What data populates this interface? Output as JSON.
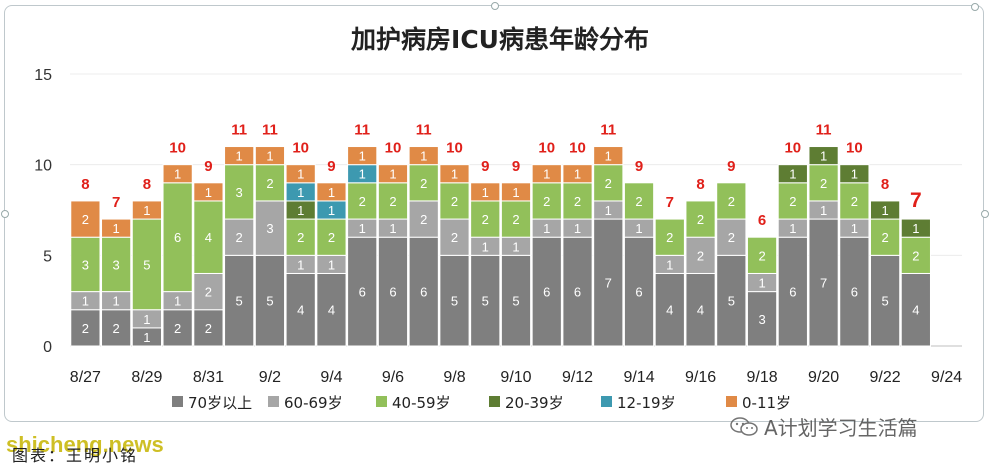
{
  "chart_data": {
    "type": "bar",
    "stacked": true,
    "title": "加护病房ICU病患年龄分布",
    "categories": [
      "8/27",
      "8/28",
      "8/29",
      "8/30",
      "8/31",
      "9/1",
      "9/2",
      "9/3",
      "9/4",
      "9/5",
      "9/6",
      "9/7",
      "9/8",
      "9/9",
      "9/10",
      "9/11",
      "9/12",
      "9/13",
      "9/14",
      "9/15",
      "9/16",
      "9/17",
      "9/18",
      "9/19",
      "9/20",
      "9/21",
      "9/22",
      "9/23",
      "9/24"
    ],
    "x_tick_labels": [
      "8/27",
      "8/29",
      "8/31",
      "9/2",
      "9/4",
      "9/6",
      "9/8",
      "9/10",
      "9/12",
      "9/14",
      "9/16",
      "9/18",
      "9/20",
      "9/22",
      "9/24"
    ],
    "ylim": [
      0,
      15
    ],
    "y_ticks": [
      0,
      5,
      10,
      15
    ],
    "grid": true,
    "legend_position": "bottom",
    "series": [
      {
        "name": "70岁以上",
        "color": "#7f7f7f",
        "values": [
          2,
          2,
          1,
          2,
          2,
          5,
          5,
          4,
          4,
          6,
          6,
          6,
          5,
          5,
          5,
          6,
          6,
          7,
          6,
          4,
          4,
          5,
          3,
          6,
          7,
          6,
          5,
          4,
          0
        ]
      },
      {
        "name": "60-69岁",
        "color": "#a6a6a6",
        "values": [
          1,
          1,
          1,
          1,
          2,
          2,
          3,
          1,
          1,
          1,
          1,
          2,
          2,
          1,
          1,
          1,
          1,
          1,
          1,
          1,
          2,
          2,
          1,
          1,
          1,
          1,
          0,
          0,
          0
        ]
      },
      {
        "name": "40-59岁",
        "color": "#92c05a",
        "values": [
          3,
          3,
          5,
          6,
          4,
          3,
          2,
          2,
          2,
          2,
          2,
          2,
          2,
          2,
          2,
          2,
          2,
          2,
          2,
          2,
          2,
          2,
          2,
          2,
          2,
          2,
          2,
          2,
          0
        ]
      },
      {
        "name": "20-39岁",
        "color": "#5e7d33",
        "values": [
          0,
          0,
          0,
          0,
          0,
          0,
          0,
          1,
          0,
          0,
          0,
          0,
          0,
          0,
          0,
          0,
          0,
          0,
          0,
          0,
          0,
          0,
          0,
          1,
          1,
          1,
          1,
          1,
          0
        ]
      },
      {
        "name": "12-19岁",
        "color": "#3d99b0",
        "values": [
          0,
          0,
          0,
          0,
          0,
          0,
          0,
          1,
          1,
          1,
          0,
          0,
          0,
          0,
          0,
          0,
          0,
          0,
          0,
          0,
          0,
          0,
          0,
          0,
          0,
          0,
          0,
          0,
          0
        ]
      },
      {
        "name": "0-11岁",
        "color": "#e08a46",
        "values": [
          2,
          1,
          1,
          1,
          1,
          1,
          1,
          1,
          1,
          1,
          1,
          1,
          1,
          1,
          1,
          1,
          1,
          1,
          0,
          0,
          0,
          0,
          0,
          0,
          0,
          0,
          0,
          0,
          0
        ]
      }
    ],
    "totals": [
      8,
      7,
      8,
      10,
      9,
      11,
      11,
      10,
      9,
      11,
      10,
      11,
      10,
      9,
      9,
      10,
      10,
      11,
      9,
      7,
      8,
      9,
      6,
      10,
      11,
      10,
      8,
      7,
      null
    ],
    "highlighted_total_index": 27
  },
  "footer": {
    "source_label": "图表：王明小铭",
    "watermark_left": "shicheng.news",
    "watermark_right": "A计划学习生活篇"
  }
}
